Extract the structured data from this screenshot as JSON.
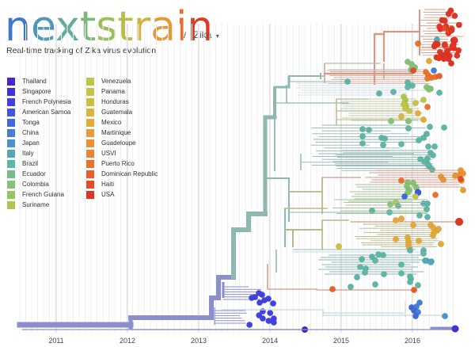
{
  "header": {
    "logo_letters": [
      {
        "ch": "n",
        "color": "#4377cd"
      },
      {
        "ch": "e",
        "color": "#5097ba"
      },
      {
        "ch": "x",
        "color": "#63ac9a"
      },
      {
        "ch": "t",
        "color": "#7cb879"
      },
      {
        "ch": "s",
        "color": "#9abe5c"
      },
      {
        "ch": "t",
        "color": "#b9bc4a"
      },
      {
        "ch": "r",
        "color": "#d4b13f"
      },
      {
        "ch": "a",
        "color": "#e49938"
      },
      {
        "ch": "i",
        "color": "#e67030"
      },
      {
        "ch": "n",
        "color": "#de3c26"
      }
    ],
    "separator": "/",
    "dataset": "Zika",
    "dropdown_caret": "caret-down-icon",
    "tagline": "Real-time tracking of Zika virus evolution"
  },
  "legend": {
    "columns": [
      [
        {
          "label": "Thailand",
          "color": "#4a26c8"
        },
        {
          "label": "Singapore",
          "color": "#4330d8"
        },
        {
          "label": "French Polynesia",
          "color": "#4140e0"
        },
        {
          "label": "American Samoa",
          "color": "#3f55e2"
        },
        {
          "label": "Tonga",
          "color": "#4168dd"
        },
        {
          "label": "China",
          "color": "#4580d6"
        },
        {
          "label": "Japan",
          "color": "#4a94cc"
        },
        {
          "label": "Italy",
          "color": "#52a7bd"
        },
        {
          "label": "Brazil",
          "color": "#5eb6a6"
        },
        {
          "label": "Ecuador",
          "color": "#72bf8a"
        },
        {
          "label": "Colombia",
          "color": "#84c373"
        },
        {
          "label": "French Guiana",
          "color": "#98c65e"
        },
        {
          "label": "Suriname",
          "color": "#acc84f"
        }
      ],
      [
        {
          "label": "Venezuela",
          "color": "#b9c849"
        },
        {
          "label": "Panama",
          "color": "#c7c444"
        },
        {
          "label": "Honduras",
          "color": "#d3bd40"
        },
        {
          "label": "Guatemala",
          "color": "#ddb33c"
        },
        {
          "label": "Mexico",
          "color": "#e4a938"
        },
        {
          "label": "Martinique",
          "color": "#e89e35"
        },
        {
          "label": "Guadeloupe",
          "color": "#eb9232"
        },
        {
          "label": "USVI",
          "color": "#ec832f"
        },
        {
          "label": "Puerto Rico",
          "color": "#ec722c"
        },
        {
          "label": "Dominican Republic",
          "color": "#e95f29"
        },
        {
          "label": "Haiti",
          "color": "#e54b26"
        },
        {
          "label": "USA",
          "color": "#e03424"
        }
      ]
    ]
  },
  "tree": {
    "axis_ticks": [
      "2011",
      "2012",
      "2013",
      "2014",
      "2015",
      "2016"
    ],
    "branch_colors": {
      "asia": "#8c8fcb",
      "brazil": "#8fb8b0",
      "caribbean": "#d49a86",
      "central": "#b7b98a",
      "colombia": "#a9c49a",
      "light": "#c8d8e0"
    }
  }
}
